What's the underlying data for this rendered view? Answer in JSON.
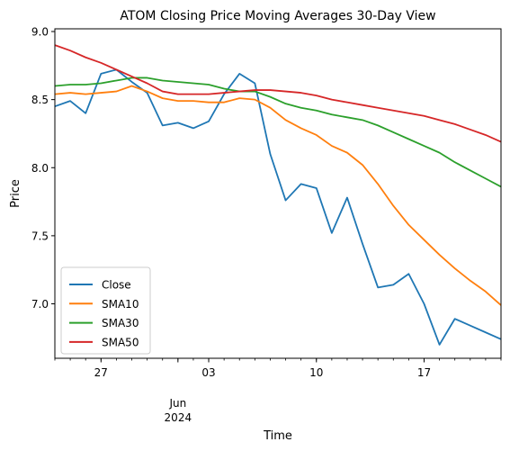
{
  "chart_data": {
    "type": "line",
    "title": "ATOM Closing Price Moving Averages 30-Day View",
    "xlabel": "Time",
    "ylabel": "Price",
    "x": [
      "2024-05-24",
      "2024-05-25",
      "2024-05-26",
      "2024-05-27",
      "2024-05-28",
      "2024-05-29",
      "2024-05-30",
      "2024-05-31",
      "2024-06-01",
      "2024-06-02",
      "2024-06-03",
      "2024-06-04",
      "2024-06-05",
      "2024-06-06",
      "2024-06-07",
      "2024-06-08",
      "2024-06-09",
      "2024-06-10",
      "2024-06-11",
      "2024-06-12",
      "2024-06-13",
      "2024-06-14",
      "2024-06-15",
      "2024-06-16",
      "2024-06-17",
      "2024-06-18",
      "2024-06-19",
      "2024-06-20",
      "2024-06-21",
      "2024-06-22"
    ],
    "xlim": [
      "2024-05-24",
      "2024-06-22"
    ],
    "ylim": [
      6.6,
      9.02
    ],
    "x_ticks": [
      {
        "date": "2024-05-27",
        "label": "27"
      },
      {
        "date": "2024-06-01",
        "label": ""
      },
      {
        "date": "2024-06-03",
        "label": "03"
      },
      {
        "date": "2024-06-10",
        "label": "10"
      },
      {
        "date": "2024-06-17",
        "label": "17"
      }
    ],
    "x_month_label": {
      "date": "2024-06-01",
      "month": "Jun",
      "year": "2024"
    },
    "y_ticks": [
      {
        "value": 7.0,
        "label": "7.0"
      },
      {
        "value": 7.5,
        "label": "7.5"
      },
      {
        "value": 8.0,
        "label": "8.0"
      },
      {
        "value": 8.5,
        "label": "8.5"
      },
      {
        "value": 9.0,
        "label": "9.0"
      }
    ],
    "grid": false,
    "legend": "lower-left",
    "series": [
      {
        "name": "Close",
        "color": "#1f77b4",
        "values": [
          8.45,
          8.49,
          8.4,
          8.69,
          8.72,
          8.63,
          8.55,
          8.31,
          8.33,
          8.29,
          8.34,
          8.54,
          8.69,
          8.62,
          8.1,
          7.76,
          7.88,
          7.85,
          7.52,
          7.78,
          7.44,
          7.12,
          7.14,
          7.22,
          7.0,
          6.7,
          6.89,
          6.84,
          6.79,
          6.74
        ]
      },
      {
        "name": "SMA10",
        "color": "#ff7f0e",
        "values": [
          8.54,
          8.55,
          8.54,
          8.55,
          8.56,
          8.6,
          8.56,
          8.51,
          8.49,
          8.49,
          8.48,
          8.48,
          8.51,
          8.5,
          8.44,
          8.35,
          8.29,
          8.24,
          8.16,
          8.11,
          8.02,
          7.88,
          7.72,
          7.58,
          7.47,
          7.36,
          7.26,
          7.17,
          7.09,
          6.99
        ]
      },
      {
        "name": "SMA30",
        "color": "#2ca02c",
        "values": [
          8.6,
          8.61,
          8.61,
          8.62,
          8.64,
          8.66,
          8.66,
          8.64,
          8.63,
          8.62,
          8.61,
          8.58,
          8.56,
          8.56,
          8.52,
          8.47,
          8.44,
          8.42,
          8.39,
          8.37,
          8.35,
          8.31,
          8.26,
          8.21,
          8.16,
          8.11,
          8.04,
          7.98,
          7.92,
          7.86
        ]
      },
      {
        "name": "SMA50",
        "color": "#d62728",
        "values": [
          8.9,
          8.86,
          8.81,
          8.77,
          8.72,
          8.67,
          8.62,
          8.56,
          8.54,
          8.54,
          8.54,
          8.55,
          8.56,
          8.57,
          8.57,
          8.56,
          8.55,
          8.53,
          8.5,
          8.48,
          8.46,
          8.44,
          8.42,
          8.4,
          8.38,
          8.35,
          8.32,
          8.28,
          8.24,
          8.19
        ]
      }
    ]
  }
}
